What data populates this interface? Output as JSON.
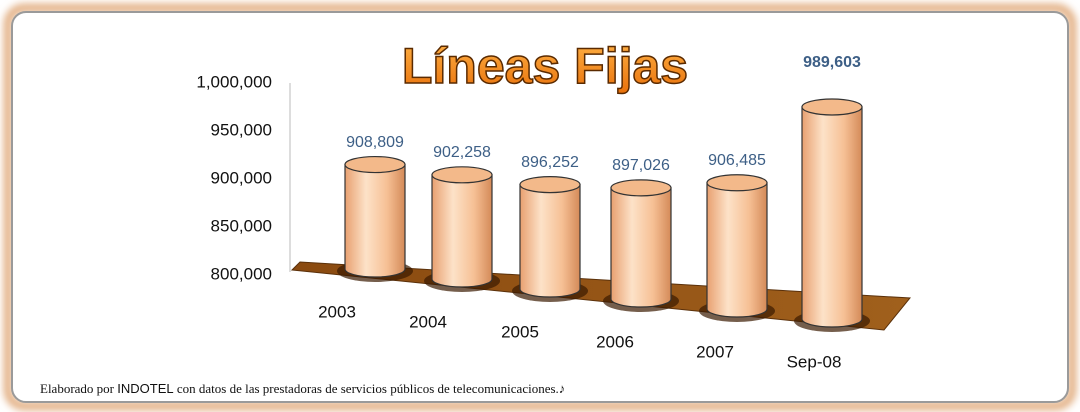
{
  "chart_data": {
    "type": "bar3d",
    "title": "Líneas Fijas",
    "categories": [
      "2003",
      "2004",
      "2005",
      "2006",
      "2007",
      "Sep-08"
    ],
    "values": [
      908809,
      902258,
      896252,
      897026,
      906485,
      989603
    ],
    "value_labels": [
      "908,809",
      "902,258",
      "896,252",
      "897,026",
      "906,485",
      "989,603"
    ],
    "color": "#f7c49c",
    "ylim": [
      800000,
      1000000
    ],
    "yticks": [
      {
        "value": 800000,
        "label": "800,000"
      },
      {
        "value": 850000,
        "label": "850,000"
      },
      {
        "value": 900000,
        "label": "900,000"
      },
      {
        "value": 950000,
        "label": "950,000"
      },
      {
        "value": 1000000,
        "label": "1,000,000"
      }
    ],
    "note": [
      "Elaborado por",
      "INDOTEL",
      "con datos de las prestadoras de servicios públicos de telecomunicaciones.♪"
    ]
  }
}
